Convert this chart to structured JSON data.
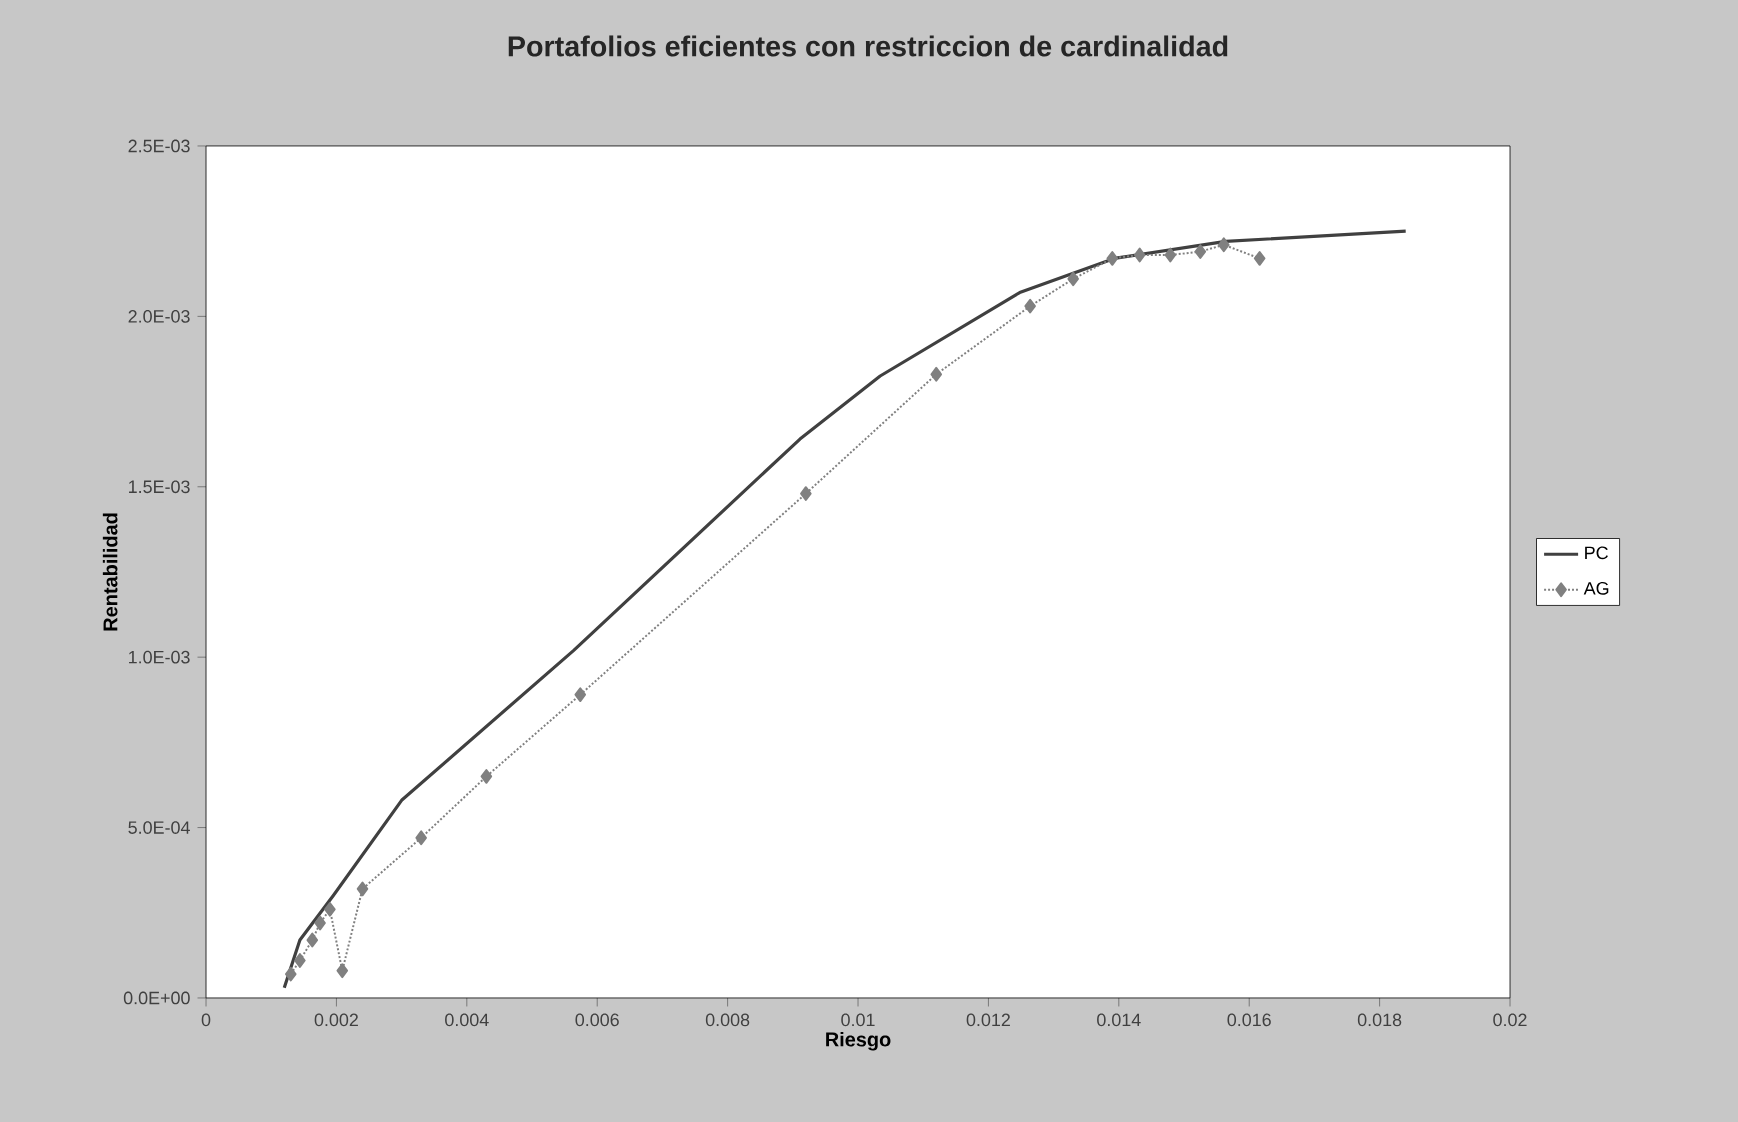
{
  "chart_data": {
    "type": "line",
    "title": "Portafolios eficientes con restriccion de cardinalidad",
    "xlabel": "Riesgo",
    "ylabel": "Rentabilidad",
    "xlim": [
      0,
      0.02
    ],
    "xticks": [
      0,
      0.002,
      0.004,
      0.006,
      0.008,
      0.01,
      0.012,
      0.014,
      0.016,
      0.018,
      0.02
    ],
    "ylim": [
      0,
      0.0025
    ],
    "yticks": [
      {
        "value": 0,
        "label": "0.0E+00"
      },
      {
        "value": 0.0005,
        "label": "5.0E-04"
      },
      {
        "value": 0.001,
        "label": "1.0E-03"
      },
      {
        "value": 0.0015,
        "label": "1.5E-03"
      },
      {
        "value": 0.002,
        "label": "2.0E-03"
      },
      {
        "value": 0.0025,
        "label": "2.5E-03"
      }
    ],
    "grid": false,
    "legend": "right",
    "series": [
      {
        "name": "PC",
        "color": "#404040",
        "line_style": "solid",
        "marker": "none",
        "x": [
          0.0012,
          0.00144,
          0.00195,
          0.003,
          0.00564,
          0.00911,
          0.01034,
          0.01248,
          0.01393,
          0.01564,
          0.0184
        ],
        "values": [
          3e-05,
          0.00017,
          0.0003,
          0.00058,
          0.00102,
          0.00164,
          0.001825,
          0.00207,
          0.00217,
          0.00222,
          0.00225
        ]
      },
      {
        "name": "AG",
        "color": "#808080",
        "line_style": "dotted",
        "marker": "diamond",
        "x": [
          0.0013,
          0.00144,
          0.00163,
          0.00175,
          0.0019,
          0.00209,
          0.0024,
          0.0033,
          0.0043,
          0.00574,
          0.0092,
          0.0112,
          0.01264,
          0.0133,
          0.0139,
          0.01432,
          0.01479,
          0.01525,
          0.01561,
          0.01616
        ],
        "values": [
          7e-05,
          0.00011,
          0.00017,
          0.00022,
          0.00026,
          8e-05,
          0.00032,
          0.00047,
          0.00065,
          0.00089,
          0.00148,
          0.00183,
          0.00203,
          0.00211,
          0.00217,
          0.00218,
          0.00218,
          0.00219,
          0.00221,
          0.00217
        ]
      }
    ]
  }
}
